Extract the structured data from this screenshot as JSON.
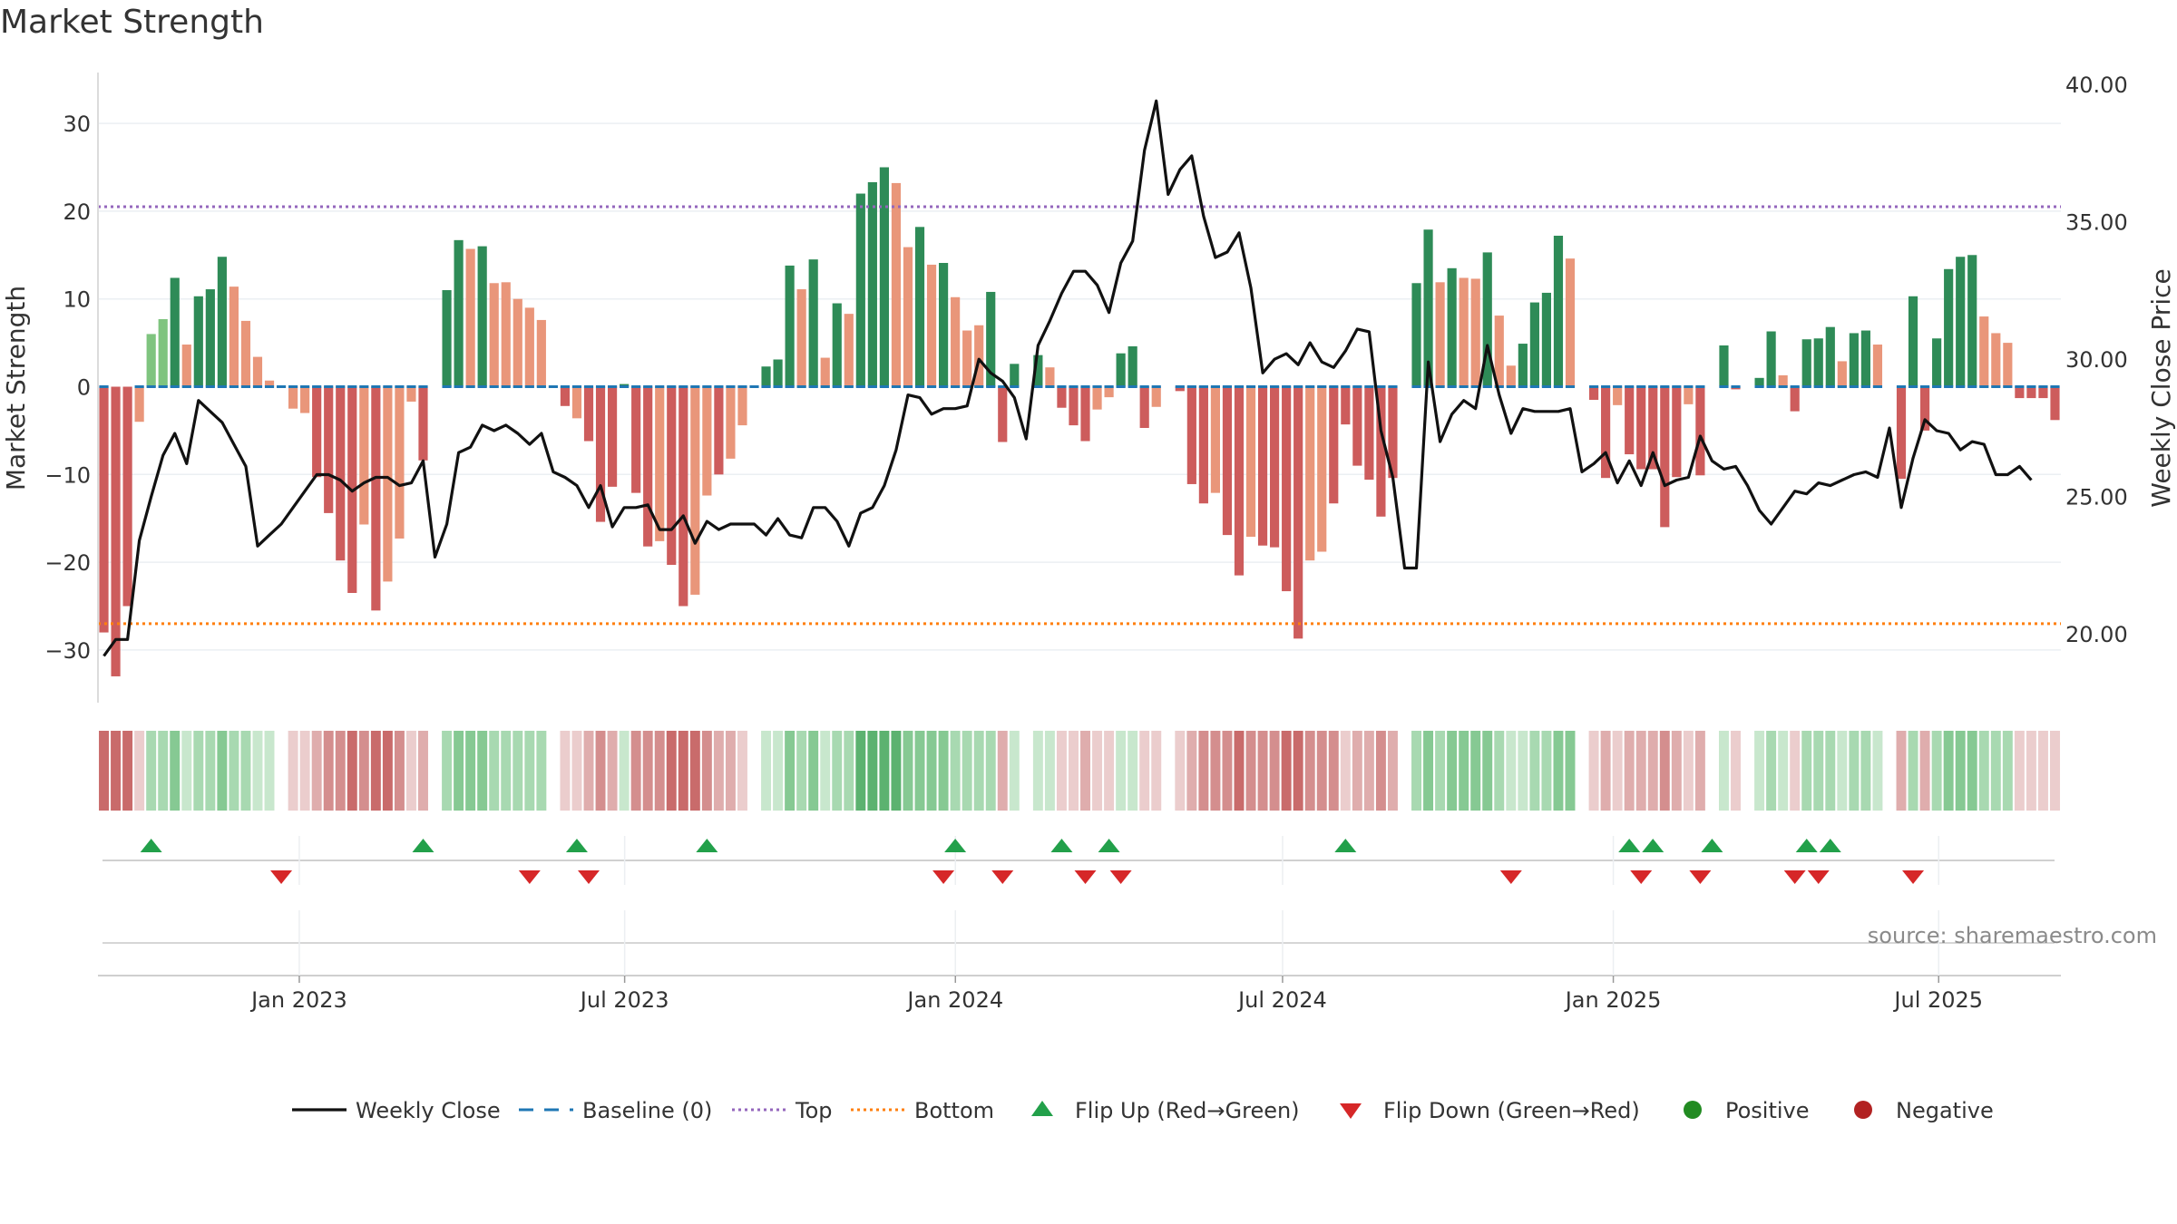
{
  "chart_data": {
    "type": "bar",
    "title": "Market Strength",
    "ylabel_left": "Market Strength",
    "ylabel_right": "Weekly Close Price",
    "ylim_left": [
      -36,
      36
    ],
    "ylim_right": [
      17.5,
      40.5
    ],
    "yticks_left": [
      {
        "value": 30,
        "label": "30"
      },
      {
        "value": 20,
        "label": "20"
      },
      {
        "value": 10,
        "label": "10"
      },
      {
        "value": 0,
        "label": "0"
      },
      {
        "value": -10,
        "label": "−10"
      },
      {
        "value": -20,
        "label": "−20"
      },
      {
        "value": -30,
        "label": "−30"
      }
    ],
    "yticks_right": [
      {
        "value": 40,
        "label": "40.00"
      },
      {
        "value": 35,
        "label": "35.00"
      },
      {
        "value": 30,
        "label": "30.00"
      },
      {
        "value": 25,
        "label": "25.00"
      },
      {
        "value": 20,
        "label": "20.00"
      }
    ],
    "top_level": 20.5,
    "bottom_level": -27,
    "x_start": "2022-09-11",
    "x_end": "2025-09-07",
    "xticks": [
      {
        "date": "2023-01-01",
        "label": "Jan 2023"
      },
      {
        "date": "2023-07-01",
        "label": "Jul 2023"
      },
      {
        "date": "2024-01-01",
        "label": "Jan 2024"
      },
      {
        "date": "2024-07-01",
        "label": "Jul 2024"
      },
      {
        "date": "2025-01-01",
        "label": "Jan 2025"
      },
      {
        "date": "2025-07-01",
        "label": "Jul 2025"
      }
    ],
    "strength": [
      -28,
      -33,
      -25,
      -4,
      6,
      7.7,
      12.4,
      4.8,
      10.3,
      11.1,
      14.8,
      11.4,
      7.5,
      3.4,
      0.7,
      0,
      -2.5,
      -3,
      -10.3,
      -14.4,
      -19.8,
      -23.5,
      -15.7,
      -25.5,
      -22.2,
      -17.3,
      -1.7,
      -8.4,
      0,
      11,
      16.7,
      15.7,
      16,
      11.8,
      11.9,
      10,
      9,
      7.6,
      0,
      -2.2,
      -3.6,
      -6.2,
      -15.4,
      -11.4,
      0.3,
      -12.1,
      -18.2,
      -17.6,
      -20.3,
      -25,
      -23.7,
      -12.4,
      -10,
      -8.2,
      -4.4,
      0,
      2.3,
      3.1,
      13.8,
      11.1,
      14.5,
      3.3,
      9.5,
      8.3,
      22,
      23.3,
      25,
      23.2,
      15.9,
      18.2,
      13.9,
      14.1,
      10.2,
      6.4,
      7,
      10.8,
      -6.3,
      2.6,
      0,
      3.6,
      2.2,
      -2.4,
      -4.4,
      -6.2,
      -2.6,
      -1.2,
      3.8,
      4.6,
      -4.7,
      -2.3,
      0,
      -0.5,
      -11.1,
      -13.3,
      -12.1,
      -16.9,
      -21.5,
      -17.1,
      -18.1,
      -18.3,
      -23.3,
      -28.7,
      -19.8,
      -18.8,
      -13.3,
      -4.3,
      -9,
      -10.6,
      -14.8,
      -10.4,
      0,
      11.8,
      17.9,
      11.9,
      13.5,
      12.4,
      12.3,
      15.3,
      8.1,
      2.4,
      4.9,
      9.6,
      10.7,
      17.2,
      14.6,
      0,
      -1.5,
      -10.4,
      -2.1,
      -7.7,
      -9.4,
      -9.4,
      -16,
      -10.3,
      -2,
      -10.1,
      0,
      4.7,
      -0.3,
      0,
      1,
      6.3,
      1.3,
      -2.8,
      5.4,
      5.5,
      6.8,
      2.9,
      6.1,
      6.4,
      4.8,
      0,
      -10.5,
      10.3,
      -5,
      5.5,
      13.4,
      14.8,
      15,
      8,
      6.1,
      5,
      -1.3,
      -1.3,
      -1.3,
      -3.8
    ],
    "shades": [
      3,
      3,
      3,
      2,
      1,
      1,
      0,
      2,
      0,
      0,
      0,
      2,
      2,
      2,
      2,
      0,
      2,
      2,
      3,
      3,
      3,
      3,
      2,
      3,
      2,
      2,
      2,
      3,
      0,
      0,
      0,
      2,
      0,
      2,
      2,
      2,
      2,
      2,
      0,
      3,
      2,
      3,
      3,
      3,
      0,
      3,
      3,
      2,
      3,
      3,
      2,
      2,
      3,
      2,
      2,
      0,
      0,
      0,
      0,
      2,
      0,
      2,
      0,
      2,
      0,
      0,
      0,
      2,
      2,
      0,
      2,
      0,
      2,
      2,
      2,
      0,
      3,
      0,
      0,
      0,
      2,
      3,
      3,
      3,
      2,
      2,
      0,
      0,
      3,
      2,
      0,
      3,
      3,
      3,
      2,
      3,
      3,
      2,
      3,
      3,
      3,
      3,
      2,
      2,
      3,
      3,
      3,
      3,
      3,
      3,
      0,
      0,
      0,
      2,
      0,
      2,
      2,
      0,
      2,
      2,
      0,
      0,
      0,
      0,
      2,
      0,
      3,
      3,
      2,
      3,
      3,
      3,
      3,
      3,
      2,
      3,
      0,
      0,
      3,
      0,
      0,
      0,
      2,
      3,
      0,
      0,
      0,
      2,
      0,
      0,
      2,
      0,
      3,
      0,
      3,
      0,
      0,
      0,
      0,
      2,
      2,
      2,
      3,
      3,
      3,
      3
    ],
    "baseline_markers": [
      1,
      0,
      0,
      1,
      1,
      1,
      1,
      1,
      1,
      1,
      1,
      1,
      1,
      1,
      1,
      1,
      1,
      1,
      1,
      1,
      1,
      1,
      1,
      1,
      1,
      1,
      1,
      1,
      0,
      1,
      1,
      1,
      1,
      1,
      1,
      1,
      1,
      1,
      1,
      1,
      1,
      1,
      1,
      1,
      1,
      1,
      1,
      1,
      1,
      1,
      1,
      1,
      1,
      1,
      1,
      1,
      1,
      1,
      1,
      1,
      1,
      1,
      1,
      1,
      1,
      1,
      1,
      1,
      1,
      1,
      1,
      1,
      1,
      1,
      1,
      1,
      1,
      1,
      0,
      1,
      1,
      1,
      1,
      1,
      1,
      1,
      1,
      1,
      1,
      1,
      0,
      1,
      1,
      1,
      1,
      1,
      1,
      1,
      1,
      1,
      1,
      1,
      1,
      1,
      1,
      1,
      1,
      1,
      1,
      1,
      0,
      1,
      1,
      1,
      1,
      1,
      1,
      1,
      1,
      1,
      1,
      1,
      1,
      1,
      1,
      0,
      1,
      1,
      1,
      1,
      1,
      1,
      1,
      1,
      1,
      1,
      0,
      1,
      1,
      0,
      1,
      1,
      1,
      1,
      1,
      1,
      1,
      1,
      1,
      1,
      1,
      0,
      1,
      1,
      1,
      1,
      1,
      1,
      1,
      1,
      1,
      1,
      1,
      1,
      1,
      1
    ],
    "close_prices": [
      19.2,
      19.8,
      19.8,
      23.4,
      25,
      26.5,
      27.3,
      26.2,
      28.5,
      28.1,
      27.7,
      26.9,
      26.1,
      23.2,
      23.6,
      24,
      24.6,
      25.2,
      25.8,
      25.8,
      25.6,
      25.2,
      25.5,
      25.7,
      25.7,
      25.4,
      25.5,
      26.3,
      22.8,
      24,
      26.6,
      26.8,
      27.6,
      27.4,
      27.6,
      27.3,
      26.9,
      27.3,
      25.9,
      25.7,
      25.4,
      24.6,
      25.4,
      23.9,
      24.6,
      24.6,
      24.7,
      23.8,
      23.8,
      24.3,
      23.3,
      24.1,
      23.8,
      24,
      24,
      24,
      23.6,
      24.2,
      23.6,
      23.5,
      24.6,
      24.6,
      24.1,
      23.2,
      24.4,
      24.6,
      25.4,
      26.7,
      28.7,
      28.6,
      28,
      28.2,
      28.2,
      28.3,
      30,
      29.5,
      29.2,
      28.6,
      27.1,
      30.5,
      31.4,
      32.4,
      33.2,
      33.2,
      32.7,
      31.7,
      33.5,
      34.3,
      37.6,
      39.4,
      36,
      36.9,
      37.4,
      35.2,
      33.7,
      33.9,
      34.6,
      32.6,
      29.5,
      30,
      30.2,
      29.8,
      30.6,
      29.9,
      29.7,
      30.3,
      31.1,
      31,
      27.4,
      25.7,
      22.4,
      22.4,
      29.9,
      27,
      28,
      28.5,
      28.2,
      30.5,
      28.7,
      27.3,
      28.2,
      28.1,
      28.1,
      28.1,
      28.2,
      25.9,
      26.2,
      26.6,
      25.5,
      26.3,
      25.4,
      26.6,
      25.4,
      25.6,
      25.7,
      27.2,
      26.3,
      26,
      26.1,
      25.4,
      24.5,
      24,
      24.6,
      25.2,
      25.1,
      25.5,
      25.4,
      25.6,
      25.8,
      25.9,
      25.7,
      27.5,
      24.6,
      26.4,
      27.8,
      27.4,
      27.3,
      26.7,
      27,
      26.9,
      25.8,
      25.8,
      26.1,
      25.6
    ],
    "flip_up_indices": [
      4,
      27,
      40,
      51,
      72,
      81,
      85,
      105,
      129,
      131,
      136,
      144,
      146
    ],
    "flip_down_indices": [
      15,
      36,
      41,
      71,
      76,
      83,
      86,
      119,
      130,
      135,
      143,
      145,
      153
    ],
    "legend": [
      {
        "label": "Weekly Close",
        "kind": "line"
      },
      {
        "label": "Baseline (0)",
        "kind": "dash"
      },
      {
        "label": "Top",
        "kind": "dot-purple"
      },
      {
        "label": "Bottom",
        "kind": "dot-orange"
      },
      {
        "label": "Flip Up (Red→Green)",
        "kind": "tri-up"
      },
      {
        "label": "Flip Down (Green→Red)",
        "kind": "tri-down"
      },
      {
        "label": "Positive",
        "kind": "circle-green"
      },
      {
        "label": "Negative",
        "kind": "circle-red"
      }
    ],
    "source": "source: sharemaestro.com"
  },
  "colors": {
    "green_dark": "#2e8b57",
    "green_light": "#7fc47f",
    "red_dark": "#cd5c5c",
    "red_light": "#e9967a",
    "close_line": "#111111",
    "baseline": "#1f77b4",
    "top": "#9467bd",
    "bottom": "#ff7f0e",
    "flip_up": "#22a04a",
    "flip_down": "#d62728",
    "positive": "#228b22",
    "negative": "#b22222",
    "band_pos": [
      "#5cb270",
      "#86c993",
      "#a8d9b1",
      "#c8e7cd"
    ],
    "band_neg": [
      "#c96b6b",
      "#d48e8e",
      "#dfadad",
      "#ebcdcd"
    ],
    "grid": "#ebeff3"
  }
}
